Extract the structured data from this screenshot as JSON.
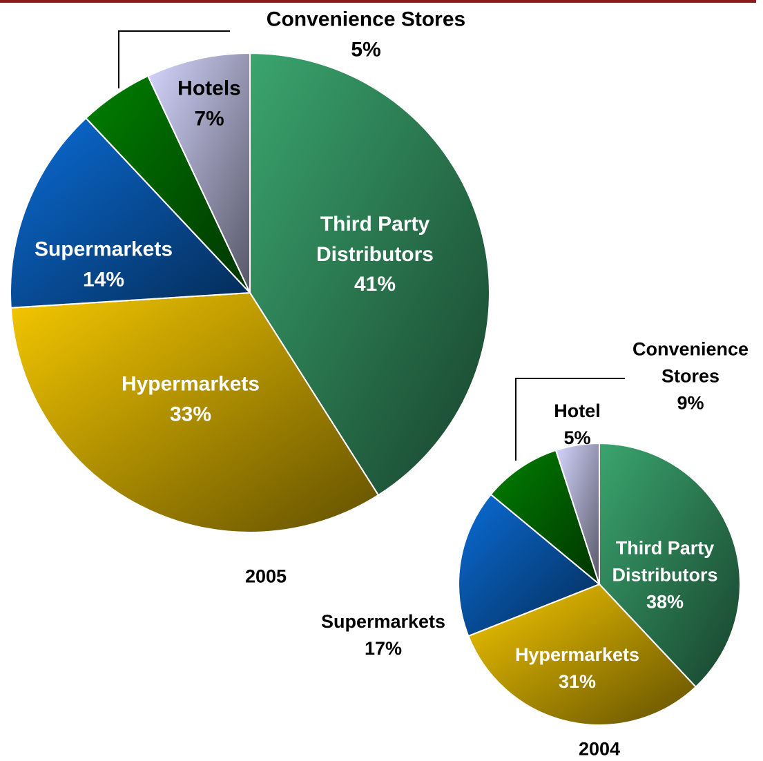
{
  "chart_data": [
    {
      "type": "pie",
      "title": "2005",
      "categories": [
        "Third Party Distributors",
        "Hypermarkets",
        "Supermarkets",
        "Convenience Stores",
        "Hotels"
      ],
      "values": [
        41,
        33,
        14,
        5,
        7
      ],
      "value_labels": [
        "41%",
        "33%",
        "14%",
        "5%",
        "7%"
      ],
      "colors": [
        "#3aa56e",
        "#f5c800",
        "#0a6cd6",
        "#008000",
        "#d6d6ff"
      ]
    },
    {
      "type": "pie",
      "title": "2004",
      "categories": [
        "Third Party Distributors",
        "Hypermarkets",
        "Supermarkets",
        "Convenience Stores",
        "Hotel"
      ],
      "values": [
        38,
        31,
        17,
        9,
        5
      ],
      "value_labels": [
        "38%",
        "31%",
        "17%",
        "9%",
        "5%"
      ],
      "colors": [
        "#3aa56e",
        "#f5c800",
        "#0a6cd6",
        "#008000",
        "#d6d6ff"
      ]
    }
  ]
}
